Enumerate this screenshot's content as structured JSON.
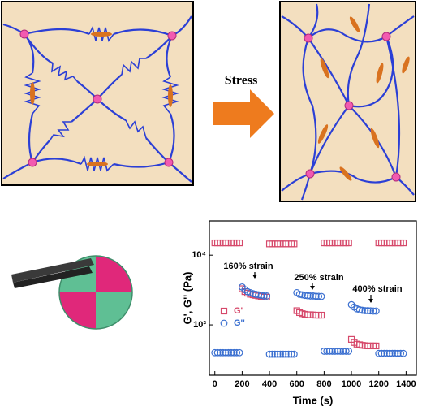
{
  "schematic": {
    "arrow_label": "Stress"
  },
  "chart_data": {
    "type": "scatter",
    "x_label": "Time (s)",
    "y_label": "G', G'' (Pa)",
    "annotations": [
      "160% strain",
      "250% strain",
      "400% strain"
    ],
    "x": [
      0,
      20,
      40,
      60,
      80,
      100,
      120,
      140,
      160,
      180,
      200,
      220,
      240,
      260,
      280,
      300,
      320,
      340,
      360,
      380,
      400,
      420,
      440,
      460,
      480,
      500,
      520,
      540,
      560,
      580,
      600,
      620,
      640,
      660,
      680,
      700,
      720,
      740,
      760,
      780,
      800,
      820,
      840,
      860,
      880,
      900,
      920,
      940,
      960,
      980,
      1000,
      1020,
      1040,
      1060,
      1080,
      1100,
      1120,
      1140,
      1160,
      1180,
      1200,
      1220,
      1240,
      1260,
      1280,
      1300,
      1320,
      1340,
      1360,
      1380
    ],
    "series": [
      {
        "name": "G'",
        "color": "#d6486a",
        "marker": "square",
        "values": [
          15000,
          15000,
          15000,
          15000,
          15000,
          15000,
          15000,
          15000,
          15000,
          15000,
          3300,
          3000,
          2850,
          2750,
          2700,
          2650,
          2600,
          2550,
          2500,
          2500,
          14500,
          14500,
          14500,
          14500,
          14500,
          14500,
          14500,
          14500,
          14500,
          14500,
          1600,
          1500,
          1450,
          1420,
          1400,
          1400,
          1390,
          1380,
          1380,
          1380,
          15000,
          15000,
          15000,
          15000,
          15000,
          15000,
          15000,
          15000,
          15000,
          15000,
          620,
          560,
          530,
          520,
          510,
          505,
          500,
          500,
          500,
          500,
          15000,
          15000,
          15000,
          15000,
          15000,
          15000,
          15000,
          15000,
          15000,
          15000
        ]
      },
      {
        "name": "G''",
        "color": "#3a6fd0",
        "marker": "circle",
        "values": [
          400,
          400,
          400,
          400,
          400,
          400,
          400,
          400,
          400,
          400,
          3500,
          3200,
          3000,
          2900,
          2800,
          2750,
          2700,
          2650,
          2600,
          2600,
          380,
          380,
          380,
          380,
          380,
          380,
          380,
          380,
          380,
          380,
          2900,
          2750,
          2700,
          2650,
          2620,
          2600,
          2600,
          2580,
          2570,
          2560,
          420,
          420,
          420,
          420,
          420,
          420,
          420,
          420,
          420,
          420,
          1950,
          1800,
          1700,
          1650,
          1620,
          1600,
          1600,
          1590,
          1580,
          1580,
          390,
          390,
          390,
          390,
          390,
          390,
          390,
          390,
          390,
          390
        ]
      }
    ],
    "xlim": [
      -40,
      1475
    ],
    "xticks": [
      0,
      200,
      400,
      600,
      800,
      1000,
      1200,
      1400
    ],
    "ylim": [
      190,
      31000
    ],
    "log_y": true,
    "yticks": [
      {
        "value": 1000,
        "label": "10³"
      },
      {
        "value": 10000,
        "label": "10⁴"
      }
    ],
    "legend": "left"
  }
}
